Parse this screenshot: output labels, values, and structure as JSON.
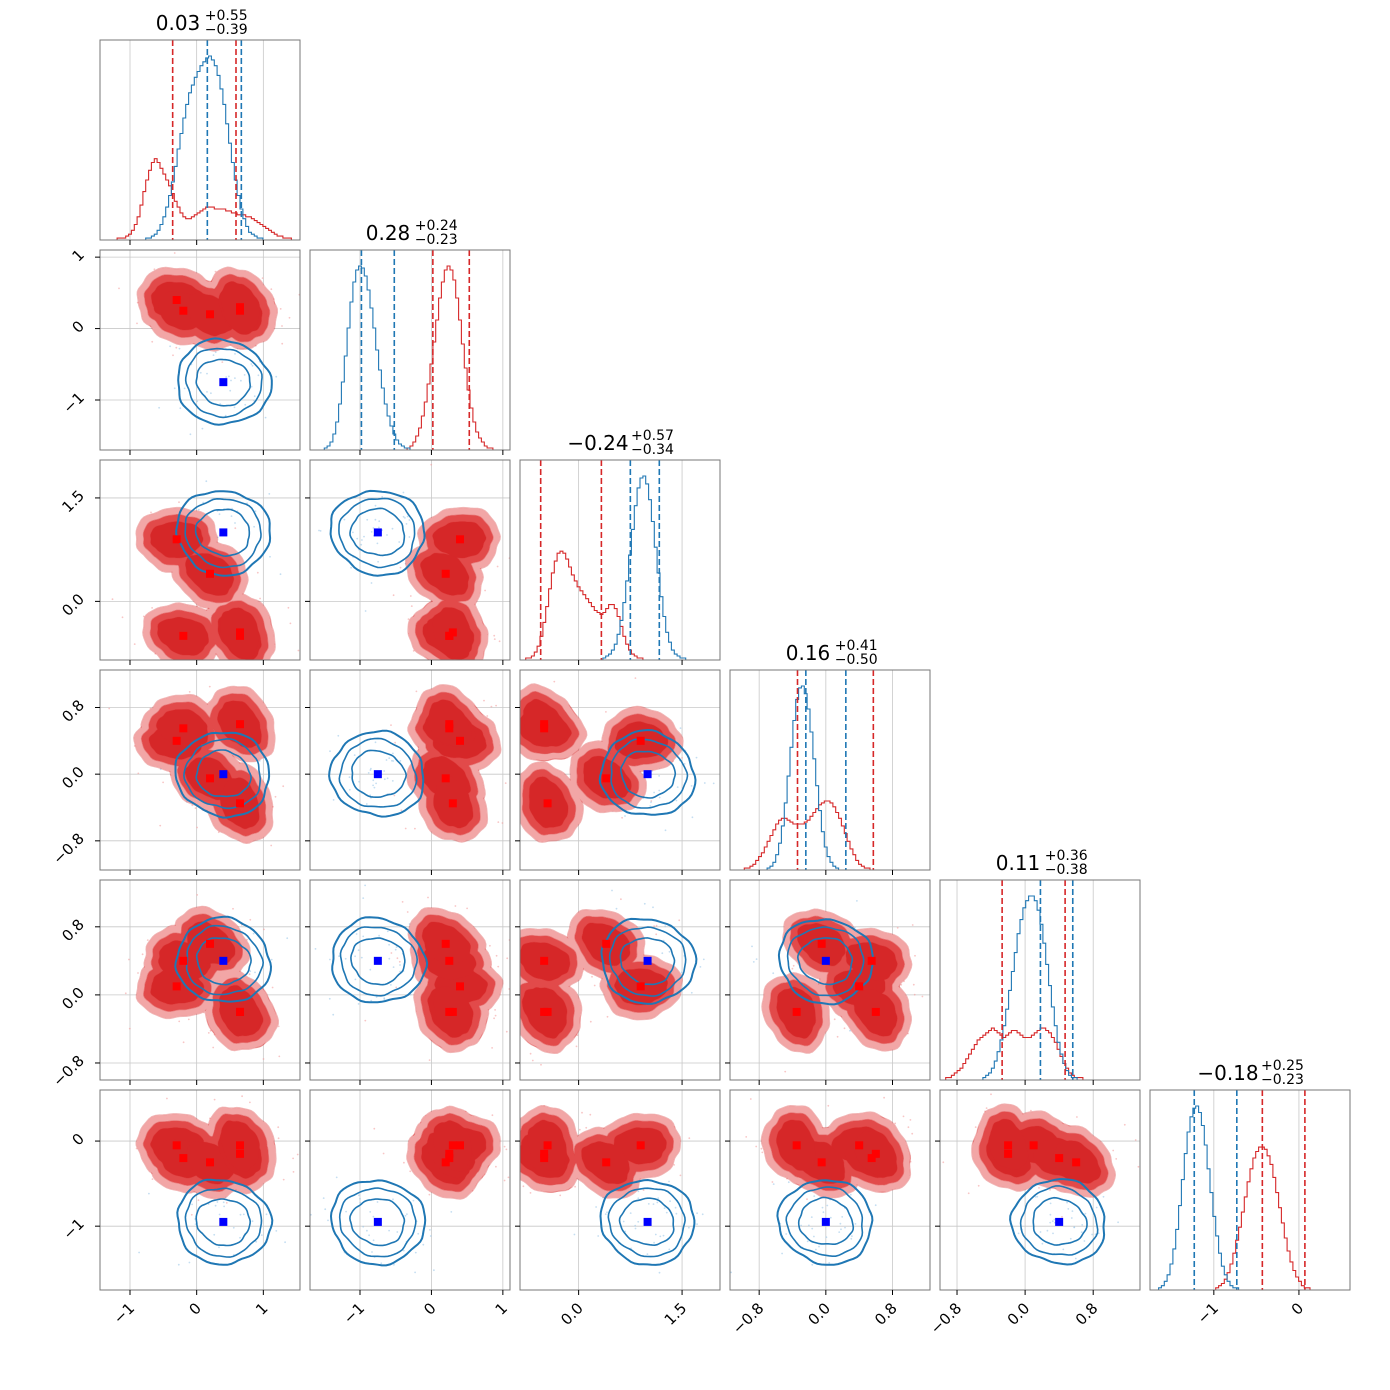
{
  "chart_data": {
    "type": "corner",
    "colors": {
      "red": "#d62728",
      "red_light": "#f2a6a6",
      "blue": "#1f77b4",
      "marker_red": "#ff0000",
      "marker_blue": "#0000ff",
      "grid": "#c8c8c8"
    },
    "parameters": [
      {
        "title_value": "0.03",
        "title_plus": "+0.55",
        "title_minus": "−0.39",
        "range": [
          -1.45,
          1.55
        ],
        "ticks": [
          -1,
          0,
          1
        ],
        "tick_labels": [
          "−1",
          "0",
          "1"
        ],
        "hist_red": [
          0,
          0,
          0,
          0,
          0,
          0,
          1,
          1,
          1,
          2,
          3,
          5,
          8,
          12,
          18,
          25,
          31,
          36,
          40,
          42,
          40,
          37,
          34,
          31,
          28,
          24,
          20,
          17,
          14,
          12,
          11,
          11,
          12,
          13,
          14,
          15,
          16,
          17,
          17,
          17,
          16,
          16,
          16,
          16,
          15,
          15,
          14,
          14,
          13,
          13,
          13,
          12,
          12,
          11,
          10,
          9,
          8,
          7,
          6,
          5,
          4,
          3,
          2,
          2,
          1,
          1,
          1,
          0,
          0,
          0
        ],
        "hist_blue": [
          0,
          0,
          0,
          0,
          0,
          0,
          0,
          0,
          0,
          0,
          0,
          0,
          0,
          0,
          0,
          0,
          1,
          1,
          2,
          3,
          5,
          8,
          12,
          17,
          23,
          30,
          38,
          47,
          55,
          63,
          70,
          76,
          80,
          84,
          87,
          90,
          92,
          94,
          95,
          93,
          90,
          85,
          78,
          70,
          60,
          50,
          40,
          31,
          23,
          16,
          11,
          7,
          4,
          3,
          2,
          1,
          1,
          0,
          0,
          0,
          0,
          0,
          0,
          0,
          0,
          0,
          0,
          0,
          0,
          0
        ],
        "quantiles_red": [
          -0.36,
          0.59
        ],
        "quantiles_blue": [
          0.16,
          0.67
        ]
      },
      {
        "title_value": "0.28",
        "title_plus": "+0.24",
        "title_minus": "−0.23",
        "range": [
          -1.7,
          1.1
        ],
        "ticks": [
          -1,
          0,
          1
        ],
        "tick_labels": [
          "−1",
          "0",
          "1"
        ],
        "hist_red": [
          0,
          0,
          0,
          0,
          0,
          0,
          0,
          0,
          0,
          0,
          0,
          0,
          0,
          0,
          0,
          0,
          0,
          0,
          0,
          0,
          0,
          0,
          0,
          0,
          0,
          0,
          0,
          0,
          0,
          0,
          0,
          0,
          0,
          0,
          1,
          2,
          4,
          7,
          11,
          17,
          24,
          33,
          43,
          54,
          65,
          76,
          84,
          90,
          92,
          90,
          85,
          76,
          65,
          53,
          41,
          30,
          21,
          14,
          9,
          6,
          4,
          2,
          1,
          1,
          0,
          0,
          0,
          0,
          0,
          0
        ],
        "hist_blue": [
          0,
          0,
          0,
          0,
          0,
          1,
          2,
          4,
          8,
          14,
          23,
          34,
          47,
          61,
          74,
          84,
          90,
          92,
          91,
          87,
          80,
          71,
          61,
          50,
          40,
          31,
          23,
          17,
          12,
          8,
          5,
          3,
          2,
          1,
          1,
          0,
          0,
          0,
          0,
          0,
          0,
          0,
          0,
          0,
          0,
          0,
          0,
          0,
          0,
          0,
          0,
          0,
          0,
          0,
          0,
          0,
          0,
          0,
          0,
          0,
          0,
          0,
          0,
          0,
          0,
          0,
          0,
          0,
          0,
          0
        ],
        "quantiles_red": [
          0.02,
          0.53
        ],
        "quantiles_blue": [
          -0.98,
          -0.52
        ]
      },
      {
        "title_value": "−0.24",
        "title_plus": "+0.57",
        "title_minus": "−0.34",
        "range": [
          -0.85,
          2.05
        ],
        "ticks": [
          0,
          1.5
        ],
        "tick_labels": [
          "0.0",
          "1.5"
        ],
        "hist_red": [
          0,
          0,
          1,
          1,
          2,
          4,
          7,
          12,
          19,
          27,
          36,
          44,
          50,
          54,
          55,
          54,
          51,
          47,
          43,
          40,
          37,
          35,
          33,
          31,
          29,
          27,
          25,
          24,
          23,
          24,
          26,
          28,
          28,
          26,
          22,
          17,
          12,
          8,
          5,
          3,
          2,
          1,
          1,
          0,
          0,
          0,
          0,
          0,
          0,
          0,
          0,
          0,
          0,
          0,
          0,
          0,
          0,
          0,
          0,
          0,
          0,
          0,
          0,
          0,
          0,
          0,
          0,
          0,
          0,
          0
        ],
        "hist_blue": [
          0,
          0,
          0,
          0,
          0,
          0,
          0,
          0,
          0,
          0,
          0,
          0,
          0,
          0,
          0,
          0,
          0,
          0,
          0,
          0,
          0,
          0,
          0,
          0,
          0,
          0,
          0,
          0,
          0,
          1,
          2,
          3,
          5,
          8,
          13,
          20,
          29,
          40,
          53,
          66,
          78,
          87,
          92,
          93,
          89,
          81,
          70,
          57,
          44,
          32,
          22,
          14,
          9,
          5,
          3,
          2,
          1,
          1,
          0,
          0,
          0,
          0,
          0,
          0,
          0,
          0,
          0,
          0,
          0,
          0
        ],
        "quantiles_red": [
          -0.55,
          0.33
        ],
        "quantiles_blue": [
          0.75,
          1.17
        ]
      },
      {
        "title_value": "0.16",
        "title_plus": "+0.41",
        "title_minus": "−0.50",
        "range": [
          -1.15,
          1.25
        ],
        "ticks": [
          -0.8,
          0,
          0.8
        ],
        "tick_labels": [
          "−0.8",
          "0.0",
          "0.8"
        ],
        "hist_red": [
          0,
          0,
          0,
          0,
          0,
          1,
          1,
          2,
          3,
          5,
          7,
          9,
          12,
          15,
          18,
          21,
          24,
          26,
          27,
          27,
          26,
          25,
          24,
          24,
          24,
          24,
          25,
          26,
          28,
          30,
          32,
          34,
          35,
          36,
          36,
          35,
          33,
          30,
          27,
          23,
          19,
          15,
          11,
          8,
          5,
          3,
          2,
          1,
          1,
          0,
          0,
          0,
          0,
          0,
          0,
          0,
          0,
          0,
          0,
          0,
          0,
          0,
          0,
          0,
          0,
          0,
          0,
          0,
          0,
          0
        ],
        "hist_blue": [
          0,
          0,
          0,
          0,
          0,
          0,
          0,
          0,
          0,
          0,
          0,
          0,
          0,
          1,
          2,
          4,
          8,
          14,
          23,
          35,
          49,
          64,
          78,
          89,
          95,
          96,
          92,
          84,
          72,
          58,
          44,
          31,
          20,
          12,
          7,
          4,
          2,
          1,
          0,
          0,
          0,
          0,
          0,
          0,
          0,
          0,
          0,
          0,
          0,
          0,
          0,
          0,
          0,
          0,
          0,
          0,
          0,
          0,
          0,
          0,
          0,
          0,
          0,
          0,
          0,
          0,
          0,
          0,
          0,
          0
        ],
        "quantiles_red": [
          -0.34,
          0.57
        ],
        "quantiles_blue": [
          -0.24,
          0.24
        ]
      },
      {
        "title_value": "0.11",
        "title_plus": "+0.36",
        "title_minus": "−0.38",
        "range": [
          -1.0,
          1.35
        ],
        "ticks": [
          -0.8,
          0,
          0.8
        ],
        "tick_labels": [
          "−0.8",
          "0.0",
          "0.8"
        ],
        "hist_red": [
          0,
          0,
          1,
          1,
          2,
          3,
          4,
          5,
          7,
          9,
          11,
          13,
          15,
          17,
          18,
          19,
          20,
          21,
          22,
          21,
          20,
          19,
          18,
          19,
          20,
          21,
          21,
          20,
          19,
          18,
          18,
          18,
          19,
          20,
          21,
          22,
          22,
          21,
          20,
          18,
          16,
          13,
          10,
          7,
          5,
          3,
          2,
          1,
          1,
          1,
          0,
          0,
          0,
          0,
          0,
          0,
          0,
          0,
          0,
          0,
          0,
          0,
          0,
          0,
          0,
          0,
          0,
          0,
          0,
          0
        ],
        "hist_blue": [
          0,
          0,
          0,
          0,
          0,
          0,
          0,
          0,
          0,
          0,
          0,
          0,
          0,
          0,
          0,
          1,
          2,
          3,
          5,
          8,
          12,
          17,
          23,
          30,
          38,
          46,
          54,
          62,
          68,
          73,
          76,
          78,
          78,
          76,
          72,
          66,
          58,
          49,
          40,
          31,
          23,
          16,
          11,
          7,
          4,
          2,
          1,
          1,
          0,
          0,
          0,
          0,
          0,
          0,
          0,
          0,
          0,
          0,
          0,
          0,
          0,
          0,
          0,
          0,
          0,
          0,
          0,
          0,
          0,
          0
        ],
        "quantiles_red": [
          -0.27,
          0.47
        ],
        "quantiles_blue": [
          0.18,
          0.56
        ]
      },
      {
        "title_value": "−0.18",
        "title_plus": "+0.25",
        "title_minus": "−0.23",
        "range": [
          -1.75,
          0.6
        ],
        "ticks": [
          -1,
          0
        ],
        "tick_labels": [
          "−1",
          "0"
        ],
        "hist_red": [
          0,
          0,
          0,
          0,
          0,
          0,
          0,
          0,
          0,
          0,
          0,
          0,
          0,
          0,
          0,
          0,
          0,
          0,
          0,
          0,
          0,
          0,
          0,
          1,
          2,
          3,
          5,
          8,
          12,
          17,
          23,
          29,
          36,
          43,
          50,
          56,
          61,
          64,
          66,
          66,
          65,
          62,
          58,
          52,
          45,
          38,
          31,
          24,
          18,
          13,
          9,
          6,
          4,
          2,
          1,
          1,
          0,
          0,
          0,
          0,
          0,
          0,
          0,
          0,
          0,
          0,
          0,
          0,
          0,
          0
        ],
        "hist_blue": [
          0,
          0,
          0,
          1,
          2,
          4,
          7,
          12,
          19,
          28,
          39,
          51,
          63,
          73,
          80,
          84,
          85,
          82,
          76,
          67,
          56,
          45,
          34,
          25,
          17,
          11,
          7,
          4,
          2,
          1,
          1,
          0,
          0,
          0,
          0,
          0,
          0,
          0,
          0,
          0,
          0,
          0,
          0,
          0,
          0,
          0,
          0,
          0,
          0,
          0,
          0,
          0,
          0,
          0,
          0,
          0,
          0,
          0,
          0,
          0,
          0,
          0,
          0,
          0,
          0,
          0,
          0,
          0,
          0,
          0
        ],
        "quantiles_red": [
          -0.43,
          0.07
        ],
        "quantiles_blue": [
          -1.23,
          -0.73
        ]
      }
    ],
    "markers_red": [
      [
        -0.3,
        0.4,
        0.9,
        0.4,
        0.1,
        -0.05
      ],
      [
        -0.2,
        0.25,
        -0.5,
        0.55,
        0.4,
        -0.2
      ],
      [
        0.2,
        0.2,
        0.4,
        -0.05,
        0.6,
        -0.25
      ],
      [
        0.65,
        0.25,
        -0.5,
        0.6,
        -0.2,
        -0.15
      ],
      [
        0.65,
        0.3,
        -0.45,
        -0.35,
        -0.2,
        -0.05
      ]
    ],
    "marker_blue": [
      0.4,
      -0.75,
      1.0,
      0.0,
      0.4,
      -0.95
    ]
  }
}
